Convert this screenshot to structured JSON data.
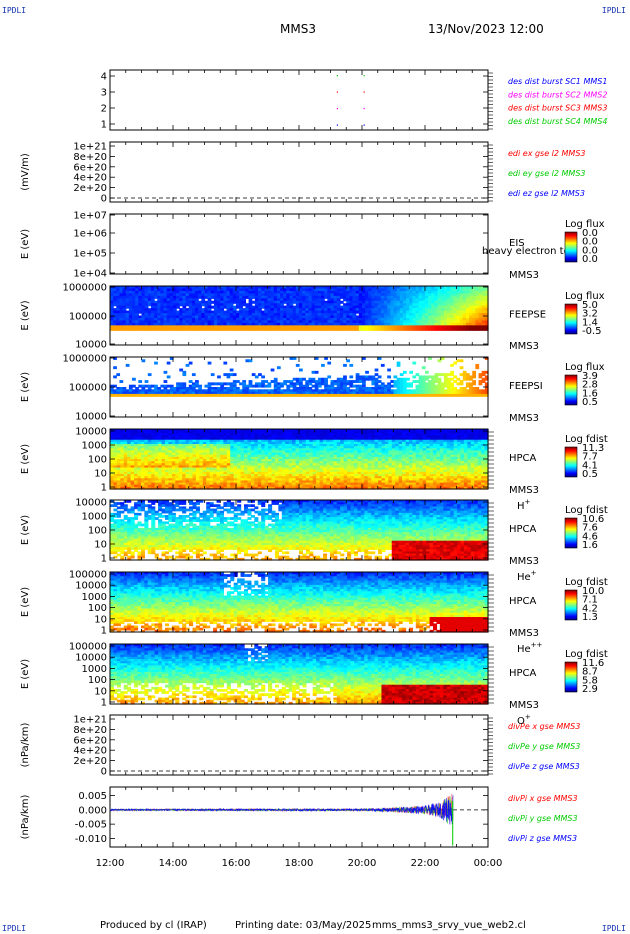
{
  "header": {
    "corner_tl": "IPDLI",
    "corner_tr": "IPDLI",
    "corner_bl": "IPDLI",
    "corner_br": "IPDLI",
    "mission": "MMS3",
    "datetime": "13/Nov/2023 12:00"
  },
  "footer": {
    "produced_by": "Produced by cl (IRAP)",
    "printing_date": "Printing date: 03/May/2025",
    "script_name": "mms_mms3_srvy_vue_web2.cl"
  },
  "time_axis": {
    "ticks": [
      "12:00",
      "14:00",
      "16:00",
      "18:00",
      "20:00",
      "22:00",
      "00:00"
    ],
    "range_hours": [
      12,
      24
    ]
  },
  "chart_data": [
    {
      "type": "scatter",
      "panel": "burst",
      "ylabel": "",
      "yticks": [
        "4",
        "3",
        "2",
        "1"
      ],
      "legend": [
        {
          "label": "des dist burst SC1 MMS1",
          "color": "#0000ff"
        },
        {
          "label": "des dist burst SC2 MMS2",
          "color": "#ff00ff"
        },
        {
          "label": "des dist burst SC3 MMS3",
          "color": "#ff0000"
        },
        {
          "label": "des dist burst SC4 MMS4",
          "color": "#00cc00"
        }
      ],
      "points": [
        {
          "t": 19.2,
          "sc": 1
        },
        {
          "t": 20.05,
          "sc": 1
        },
        {
          "t": 19.2,
          "sc": 2
        },
        {
          "t": 20.05,
          "sc": 2
        },
        {
          "t": 19.2,
          "sc": 3
        },
        {
          "t": 20.05,
          "sc": 3
        },
        {
          "t": 19.2,
          "sc": 4
        },
        {
          "t": 20.05,
          "sc": 4
        }
      ]
    },
    {
      "type": "line",
      "panel": "edi",
      "ylabel": "(mV/m)",
      "yticks": [
        "1e+21",
        "8e+20",
        "6e+20",
        "4e+20",
        "2e+20",
        "0"
      ],
      "legend": [
        {
          "label": "edi ex gse l2 MMS3",
          "color": "#ff0000"
        },
        {
          "label": "edi ey gse l2 MMS3",
          "color": "#00cc00"
        },
        {
          "label": "edi ez gse l2 MMS3",
          "color": "#0000ff"
        }
      ]
    },
    {
      "type": "heatmap",
      "panel": "eis",
      "ylabel": "E (eV)",
      "yticks": [
        "1e+07",
        "1e+06",
        "1e+05",
        "1e+04"
      ],
      "instrument": "EIS",
      "spacecraft": "MMS3",
      "overlay_text": "heavy electron to",
      "cbar_title": "Log flux",
      "cbar_ticks": [
        "0.0",
        "0.0",
        "0.0",
        "0.0"
      ]
    },
    {
      "type": "heatmap",
      "panel": "feepse",
      "ylabel": "E (eV)",
      "yticks": [
        "1000000",
        "100000",
        "10000"
      ],
      "instrument": "FEEPSE",
      "spacecraft": "MMS3",
      "cbar_title": "Log flux",
      "cbar_ticks": [
        "5.0",
        "3.2",
        "1.4",
        "-0.5"
      ]
    },
    {
      "type": "heatmap",
      "panel": "feepsi",
      "ylabel": "E (eV)",
      "yticks": [
        "1000000",
        "100000",
        "10000"
      ],
      "instrument": "FEEPSI",
      "spacecraft": "MMS3",
      "cbar_title": "Log flux",
      "cbar_ticks": [
        "3.9",
        "2.8",
        "1.6",
        "0.5"
      ]
    },
    {
      "type": "heatmap",
      "panel": "hpca_h",
      "ylabel": "E (eV)",
      "yticks": [
        "10000",
        "1000",
        "100",
        "10",
        "1"
      ],
      "instrument": "HPCA",
      "spacecraft": "MMS3",
      "species": "H",
      "species_sup": "+",
      "cbar_title": "Log fdist",
      "cbar_ticks": [
        "11.3",
        "7.7",
        "4.1",
        "0.5"
      ]
    },
    {
      "type": "heatmap",
      "panel": "hpca_he",
      "ylabel": "E (eV)",
      "yticks": [
        "10000",
        "1000",
        "100",
        "10",
        "1"
      ],
      "instrument": "HPCA",
      "spacecraft": "MMS3",
      "species": "He",
      "species_sup": "+",
      "cbar_title": "Log fdist",
      "cbar_ticks": [
        "10.6",
        "7.6",
        "4.6",
        "1.6"
      ]
    },
    {
      "type": "heatmap",
      "panel": "hpca_hepp",
      "ylabel": "E (eV)",
      "yticks": [
        "100000",
        "10000",
        "1000",
        "100",
        "10",
        "1"
      ],
      "instrument": "HPCA",
      "spacecraft": "MMS3",
      "species": "He",
      "species_sup": "++",
      "cbar_title": "Log fdist",
      "cbar_ticks": [
        "10.0",
        "7.1",
        "4.2",
        "1.3"
      ]
    },
    {
      "type": "heatmap",
      "panel": "hpca_o",
      "ylabel": "E (eV)",
      "yticks": [
        "100000",
        "10000",
        "1000",
        "100",
        "10",
        "1"
      ],
      "instrument": "HPCA",
      "spacecraft": "MMS3",
      "species": "O",
      "species_sup": "+",
      "cbar_title": "Log fdist",
      "cbar_ticks": [
        "11.6",
        "8.7",
        "5.8",
        "2.9"
      ]
    },
    {
      "type": "line",
      "panel": "divpe",
      "ylabel": "(nPa/km)",
      "yticks": [
        "1e+21",
        "8e+20",
        "6e+20",
        "4e+20",
        "2e+20",
        "0"
      ],
      "legend": [
        {
          "label": "divPe x gse MMS3",
          "color": "#ff0000"
        },
        {
          "label": "divPe y gse MMS3",
          "color": "#00cc00"
        },
        {
          "label": "divPe z gse MMS3",
          "color": "#0000ff"
        }
      ]
    },
    {
      "type": "line",
      "panel": "divpi",
      "ylabel": "(nPa/km)",
      "yticks": [
        "0.005",
        "0.000",
        "-0.005",
        "-0.010"
      ],
      "ylim": [
        -0.013,
        0.008
      ],
      "legend": [
        {
          "label": "divPi x gse MMS3",
          "color": "#ff0000"
        },
        {
          "label": "divPi y gse MMS3",
          "color": "#00cc00"
        },
        {
          "label": "divPi z gse MMS3",
          "color": "#0000ff"
        }
      ],
      "noise_envelope": {
        "t": [
          12,
          20,
          21,
          22,
          22.5,
          22.85
        ],
        "amplitude": [
          0.0003,
          0.0004,
          0.0008,
          0.0015,
          0.0028,
          0.006
        ]
      },
      "data_end_hour": 22.9
    }
  ]
}
